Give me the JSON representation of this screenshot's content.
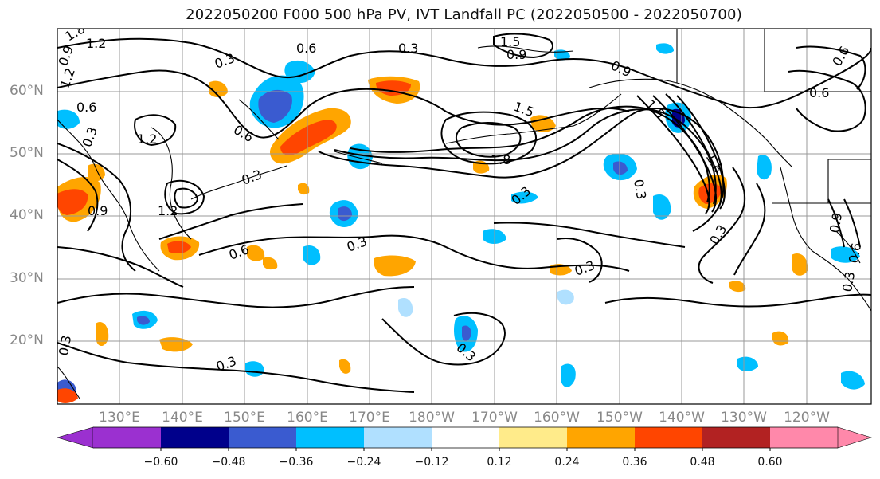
{
  "title": "2022050200 F000 500 hPa PV, IVT Landfall PC (2022050500 - 2022050700)",
  "lat_labels": [
    "60°N",
    "50°N",
    "40°N",
    "30°N",
    "20°N"
  ],
  "lon_labels": [
    "130°E",
    "140°E",
    "150°E",
    "160°E",
    "170°E",
    "180°W",
    "170°W",
    "160°W",
    "150°W",
    "140°W",
    "130°W",
    "120°W"
  ],
  "contour_labels": [
    "1.8",
    "1.2",
    "0.9",
    "1.2",
    "0.6",
    "0.3",
    "0.6",
    "0.3",
    "1.5",
    "0.9",
    "0.9",
    "0.6",
    "1.5",
    "1.5",
    "1.2",
    "1.8",
    "1.8",
    "0.3",
    "0.6",
    "0.3",
    "1.2",
    "0.9",
    "0.3",
    "0.6",
    "0.3",
    "0.3",
    "0.3",
    "0.3",
    "0.3",
    "0.3",
    "0.9",
    "0.3",
    "0.6",
    "0.6",
    "0.3"
  ],
  "colorbar": {
    "ticks": [
      "−0.60",
      "−0.48",
      "−0.36",
      "−0.24",
      "−0.12",
      "0.12",
      "0.24",
      "0.36",
      "0.48",
      "0.60"
    ],
    "colors": [
      "#9b30d0",
      "#00008b",
      "#3a5bd0",
      "#00bfff",
      "#b0e0ff",
      "#ffffff",
      "#ffeb8a",
      "#ffa500",
      "#ff4500",
      "#b22222",
      "#ff88aa"
    ]
  }
}
